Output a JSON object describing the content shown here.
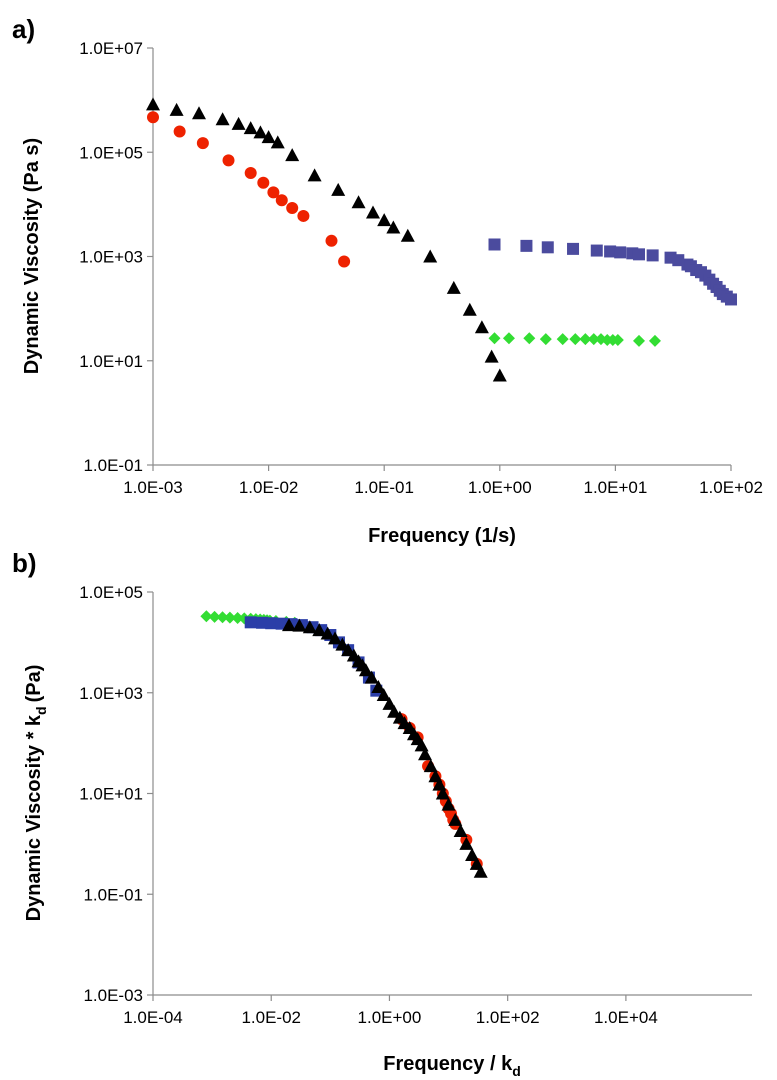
{
  "chart_data": [
    {
      "type": "scatter",
      "panel_label": "a)",
      "xlabel": "Frequency (1/s)",
      "ylabel": "Dynamic Viscosity (Pa s)",
      "x_scale": "log",
      "y_scale": "log",
      "xlim": [
        0.001,
        100
      ],
      "ylim": [
        0.1,
        10000000
      ],
      "x_ticks": [
        {
          "value": 0.001,
          "label": "1.0E-03"
        },
        {
          "value": 0.01,
          "label": "1.0E-02"
        },
        {
          "value": 0.1,
          "label": "1.0E-01"
        },
        {
          "value": 1,
          "label": "1.0E+00"
        },
        {
          "value": 10,
          "label": "1.0E+01"
        },
        {
          "value": 100,
          "label": "1.0E+02"
        }
      ],
      "y_ticks": [
        {
          "value": 0.1,
          "label": "1.0E-01"
        },
        {
          "value": 10,
          "label": "1.0E+01"
        },
        {
          "value": 1000,
          "label": "1.0E+03"
        },
        {
          "value": 100000,
          "label": "1.0E+05"
        },
        {
          "value": 10000000,
          "label": "1.0E+07"
        }
      ],
      "grid": false,
      "legend": "none",
      "series": [
        {
          "marker": "triangle",
          "color": "#000000",
          "x": [
            0.001,
            0.0016,
            0.0025,
            0.004,
            0.0055,
            0.007,
            0.0085,
            0.01,
            0.012,
            0.016,
            0.025,
            0.04,
            0.06,
            0.08,
            0.1,
            0.12,
            0.16,
            0.25,
            0.4,
            0.55,
            0.7,
            0.85,
            1.0
          ],
          "y": [
            830000,
            650000,
            560000,
            430000,
            350000,
            290000,
            240000,
            195000,
            155000,
            88000,
            36000,
            19000,
            11000,
            7000,
            5000,
            3600,
            2500,
            1000,
            250,
            95,
            44,
            12,
            5.2
          ]
        },
        {
          "marker": "circle",
          "color": "#ee2200",
          "x": [
            0.001,
            0.0017,
            0.0027,
            0.0045,
            0.007,
            0.009,
            0.011,
            0.013,
            0.016,
            0.02,
            0.035,
            0.045
          ],
          "y": [
            470000,
            250000,
            150000,
            70000,
            40000,
            26000,
            17000,
            12000,
            8500,
            6000,
            2000,
            800
          ]
        },
        {
          "marker": "square",
          "color": "#4b4b9e",
          "x": [
            0.9,
            1.7,
            2.6,
            4.3,
            6.9,
            9.0,
            11,
            14,
            16,
            21,
            30,
            35,
            42,
            45,
            50,
            55,
            60,
            65,
            70,
            75,
            80,
            85,
            92,
            100
          ],
          "y": [
            1700,
            1600,
            1500,
            1400,
            1300,
            1250,
            1200,
            1150,
            1100,
            1050,
            950,
            850,
            700,
            650,
            550,
            500,
            430,
            360,
            300,
            260,
            220,
            190,
            170,
            150
          ]
        },
        {
          "marker": "diamond",
          "color": "#33dd33",
          "x": [
            0.9,
            1.2,
            1.8,
            2.5,
            3.5,
            4.5,
            5.5,
            6.5,
            7.5,
            8.5,
            9.5,
            10.5,
            16,
            22
          ],
          "y": [
            27,
            27,
            27,
            26,
            26,
            26,
            26,
            26,
            26,
            25,
            25,
            25,
            24,
            24
          ]
        }
      ]
    },
    {
      "type": "scatter",
      "panel_label": "b)",
      "xlabel": "Frequency / k",
      "xlabel_sub": "d",
      "ylabel": "Dynamic Viscosity * k",
      "ylabel_sub": "d",
      "ylabel_suffix": "(Pa)",
      "x_scale": "log",
      "y_scale": "log",
      "xlim": [
        0.0001,
        100000
      ],
      "ylim": [
        0.001,
        100000
      ],
      "x_ticks": [
        {
          "value": 0.0001,
          "label": "1.0E-04"
        },
        {
          "value": 0.01,
          "label": "1.0E-02"
        },
        {
          "value": 1,
          "label": "1.0E+00"
        },
        {
          "value": 100,
          "label": "1.0E+02"
        },
        {
          "value": 10000,
          "label": "1.0E+04"
        }
      ],
      "y_ticks": [
        {
          "value": 0.001,
          "label": "1.0E-03"
        },
        {
          "value": 0.1,
          "label": "1.0E-01"
        },
        {
          "value": 10,
          "label": "1.0E+01"
        },
        {
          "value": 1000,
          "label": "1.0E+03"
        },
        {
          "value": 100000,
          "label": "1.0E+05"
        }
      ],
      "grid": false,
      "legend": "none",
      "series": [
        {
          "marker": "diamond",
          "color": "#33dd33",
          "x": [
            0.0008,
            0.0011,
            0.0015,
            0.002,
            0.0027,
            0.0035,
            0.0045,
            0.0055,
            0.0065,
            0.0075,
            0.0085,
            0.0095,
            0.012,
            0.018,
            0.025
          ],
          "y": [
            33000,
            32000,
            31500,
            31000,
            30500,
            30000,
            29500,
            29000,
            28500,
            28000,
            27500,
            27000,
            26500,
            25500,
            24500
          ]
        },
        {
          "marker": "square",
          "color": "#2b3ea8",
          "x": [
            0.0045,
            0.007,
            0.01,
            0.015,
            0.022,
            0.033,
            0.05,
            0.07,
            0.1,
            0.14,
            0.2,
            0.3,
            0.45,
            0.6
          ],
          "y": [
            25000,
            24500,
            24000,
            23500,
            23000,
            22000,
            20000,
            17500,
            14000,
            10000,
            7000,
            4000,
            2000,
            1100
          ]
        },
        {
          "marker": "circle",
          "color": "#ee2200",
          "x": [
            1.6,
            2.2,
            3,
            4.5,
            6,
            7,
            8,
            9,
            10,
            11,
            12,
            13,
            20,
            30
          ],
          "y": [
            300,
            200,
            130,
            35,
            22,
            15,
            10,
            7,
            5,
            4,
            3,
            2.5,
            1.2,
            0.4
          ]
        },
        {
          "marker": "triangle",
          "color": "#000000",
          "x": [
            0.02,
            0.03,
            0.045,
            0.065,
            0.09,
            0.12,
            0.16,
            0.2,
            0.25,
            0.3,
            0.35,
            0.4,
            0.5,
            0.65,
            0.8,
            1.0,
            1.2,
            1.5,
            1.8,
            2.2,
            2.6,
            3.0,
            3.5,
            4.0,
            5.0,
            6.0,
            7.0,
            8.0,
            10,
            13,
            16,
            20,
            25,
            30,
            35
          ],
          "y": [
            22000,
            21500,
            20000,
            17500,
            15000,
            12000,
            9000,
            7000,
            5500,
            4200,
            3500,
            2800,
            2000,
            1300,
            900,
            600,
            420,
            320,
            250,
            200,
            150,
            120,
            90,
            60,
            35,
            22,
            15,
            10,
            6,
            3.0,
            1.8,
            1.0,
            0.6,
            0.4,
            0.28
          ]
        }
      ]
    }
  ]
}
